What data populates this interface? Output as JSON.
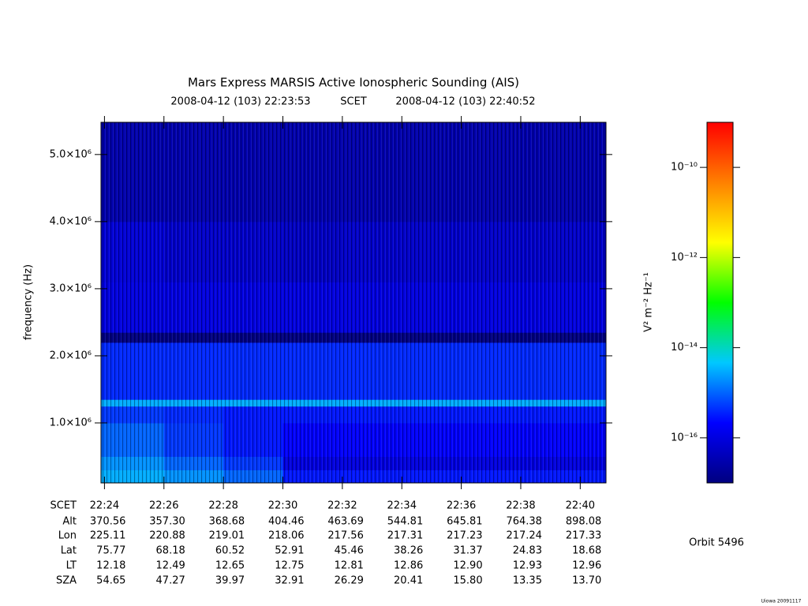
{
  "chart_data": {
    "type": "heatmap",
    "title": "Mars Express MARSIS Active Ionospheric Sounding (AIS)",
    "start_time": "2008-04-12 (103) 22:23:53",
    "time_label": "SCET",
    "end_time": "2008-04-12 (103) 22:40:52",
    "ylabel": "frequency (Hz)",
    "xlim": [
      "22:23:53",
      "22:40:52"
    ],
    "xticks": [
      "22:24",
      "22:26",
      "22:28",
      "22:30",
      "22:32",
      "22:34",
      "22:36",
      "22:38",
      "22:40"
    ],
    "ylim": [
      106000,
      5480000
    ],
    "yticks": [
      {
        "value": 1000000,
        "label": "1.0×10⁶"
      },
      {
        "value": 2000000,
        "label": "2.0×10⁶"
      },
      {
        "value": 3000000,
        "label": "3.0×10⁶"
      },
      {
        "value": 4000000,
        "label": "4.0×10⁶"
      },
      {
        "value": 5000000,
        "label": "5.0×10⁶"
      }
    ],
    "x_edges": [
      "22:23:53",
      "22:26",
      "22:28",
      "22:30",
      "22:32",
      "22:34",
      "22:36",
      "22:38",
      "22:40",
      "22:40:52"
    ],
    "y_edges": [
      106000,
      300000,
      500000,
      1000000,
      1250000,
      1350000,
      2200000,
      2350000,
      3100000,
      4000000,
      5480000
    ],
    "z": [
      [
        3e-15,
        2e-15,
        1e-15,
        3e-16,
        3e-16,
        3e-16,
        3e-16,
        3e-16,
        3e-16
      ],
      [
        2e-15,
        1e-15,
        5e-16,
        1e-16,
        1e-16,
        1e-16,
        1e-16,
        1e-16,
        1e-16
      ],
      [
        1e-15,
        5e-16,
        3e-16,
        2e-16,
        2e-16,
        2e-16,
        2e-16,
        2e-16,
        2e-16
      ],
      [
        5e-16,
        4e-16,
        3e-16,
        3e-16,
        3e-16,
        3e-16,
        3e-16,
        3e-16,
        3e-16
      ],
      [
        3e-15,
        3e-15,
        3e-15,
        3e-15,
        3e-15,
        3e-15,
        3e-15,
        3e-15,
        3e-15
      ],
      [
        4e-16,
        4e-16,
        4e-16,
        4e-16,
        4e-16,
        4e-16,
        4e-16,
        4e-16,
        4e-16
      ],
      [
        1e-17,
        1e-17,
        1e-17,
        1e-17,
        1e-17,
        1e-17,
        1e-17,
        1e-17,
        1e-17
      ],
      [
        1e-16,
        1e-16,
        1e-16,
        1e-16,
        1e-16,
        1e-16,
        1e-16,
        1e-16,
        1e-16
      ],
      [
        8e-17,
        6e-17,
        6e-17,
        5e-17,
        6e-17,
        6e-17,
        6e-17,
        6e-17,
        6e-17
      ],
      [
        3e-17,
        3e-17,
        3e-17,
        3e-17,
        3e-17,
        3e-17,
        3e-17,
        3e-17,
        3e-17
      ]
    ],
    "colorbar": {
      "label": "V² m⁻² Hz⁻¹",
      "log": true,
      "lim": [
        1e-17,
        1e-09
      ],
      "ticks": [
        {
          "value": 1e-16,
          "label": "10⁻¹⁶"
        },
        {
          "value": 1e-14,
          "label": "10⁻¹⁴"
        },
        {
          "value": 1e-12,
          "label": "10⁻¹²"
        },
        {
          "value": 1e-10,
          "label": "10⁻¹⁰"
        }
      ],
      "colors": [
        "#000080",
        "#0000ff",
        "#00c8ff",
        "#00ff00",
        "#ffff00",
        "#ff8000",
        "#ff0000"
      ]
    },
    "ephemeris": {
      "labels": [
        "SCET",
        "Alt",
        "Lon",
        "Lat",
        "LT",
        "SZA"
      ],
      "rows": [
        [
          "370.56",
          "357.30",
          "368.68",
          "404.46",
          "463.69",
          "544.81",
          "645.81",
          "764.38",
          "898.08"
        ],
        [
          "225.11",
          "220.88",
          "219.01",
          "218.06",
          "217.56",
          "217.31",
          "217.23",
          "217.24",
          "217.33"
        ],
        [
          "75.77",
          "68.18",
          "60.52",
          "52.91",
          "45.46",
          "38.26",
          "31.37",
          "24.83",
          "18.68"
        ],
        [
          "12.18",
          "12.49",
          "12.65",
          "12.75",
          "12.81",
          "12.86",
          "12.90",
          "12.93",
          "12.96"
        ],
        [
          "54.65",
          "47.27",
          "39.97",
          "32.91",
          "26.29",
          "20.41",
          "15.80",
          "13.35",
          "13.70"
        ]
      ]
    },
    "orbit": "Orbit 5496",
    "credit": "Uiowa 20091117"
  }
}
